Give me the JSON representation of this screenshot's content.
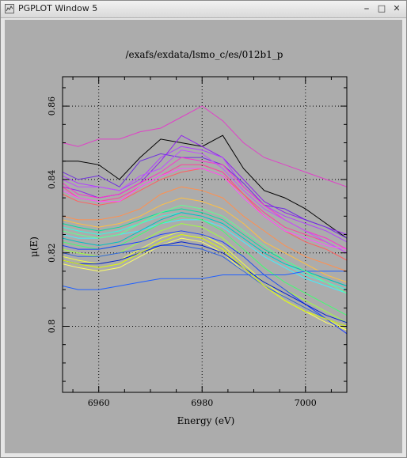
{
  "window": {
    "title": "PGPLOT Window 5",
    "controls": [
      "minimize-icon",
      "maximize-icon",
      "close-icon"
    ]
  },
  "chart_data": {
    "type": "line",
    "title": "/exafs/exdata/lsmo_c/es/012b1_p",
    "xlabel": "Energy (eV)",
    "ylabel": "μ(E)",
    "xlim": [
      6953,
      7008
    ],
    "ylim": [
      0.782,
      0.868
    ],
    "xticks": [
      6960,
      6980,
      7000
    ],
    "yticks": [
      0.8,
      0.82,
      0.84,
      0.86
    ],
    "xtick_labels": [
      "6960",
      "6980",
      "7000"
    ],
    "ytick_labels": [
      "0.8",
      "0.82",
      "0.84",
      "0.86"
    ],
    "grid": true,
    "legend": "none",
    "x": [
      6953,
      6956,
      6960,
      6964,
      6968,
      6972,
      6976,
      6980,
      6984,
      6988,
      6992,
      6996,
      7000,
      7004,
      7008
    ],
    "series": [
      {
        "color": "#e040c8",
        "values": [
          0.85,
          0.849,
          0.851,
          0.851,
          0.853,
          0.854,
          0.857,
          0.86,
          0.856,
          0.85,
          0.846,
          0.844,
          0.842,
          0.84,
          0.838
        ]
      },
      {
        "color": "#000000",
        "values": [
          0.845,
          0.845,
          0.844,
          0.84,
          0.846,
          0.851,
          0.85,
          0.849,
          0.852,
          0.843,
          0.837,
          0.835,
          0.832,
          0.828,
          0.824
        ]
      },
      {
        "color": "#9020f0",
        "values": [
          0.838,
          0.837,
          0.835,
          0.836,
          0.839,
          0.845,
          0.852,
          0.849,
          0.846,
          0.84,
          0.834,
          0.831,
          0.829,
          0.827,
          0.825
        ]
      },
      {
        "color": "#b040ff",
        "values": [
          0.841,
          0.839,
          0.838,
          0.837,
          0.84,
          0.846,
          0.849,
          0.848,
          0.846,
          0.838,
          0.833,
          0.83,
          0.828,
          0.826,
          0.823
        ]
      },
      {
        "color": "#7030e0",
        "values": [
          0.842,
          0.84,
          0.841,
          0.838,
          0.845,
          0.847,
          0.846,
          0.846,
          0.844,
          0.839,
          0.833,
          0.832,
          0.829,
          0.827,
          0.824
        ]
      },
      {
        "color": "#ff30d0",
        "values": [
          0.839,
          0.836,
          0.835,
          0.836,
          0.839,
          0.842,
          0.846,
          0.845,
          0.844,
          0.838,
          0.833,
          0.829,
          0.826,
          0.824,
          0.821
        ]
      },
      {
        "color": "#ff40a0",
        "values": [
          0.838,
          0.835,
          0.834,
          0.835,
          0.838,
          0.841,
          0.844,
          0.844,
          0.842,
          0.836,
          0.831,
          0.827,
          0.825,
          0.823,
          0.82
        ]
      },
      {
        "color": "#ff6060",
        "values": [
          0.836,
          0.834,
          0.833,
          0.834,
          0.837,
          0.84,
          0.842,
          0.843,
          0.841,
          0.836,
          0.83,
          0.826,
          0.823,
          0.821,
          0.818
        ]
      },
      {
        "color": "#c050ff",
        "values": [
          0.84,
          0.838,
          0.838,
          0.837,
          0.841,
          0.843,
          0.848,
          0.847,
          0.843,
          0.837,
          0.832,
          0.829,
          0.826,
          0.823,
          0.82
        ]
      },
      {
        "color": "#ff9050",
        "values": [
          0.83,
          0.829,
          0.829,
          0.83,
          0.832,
          0.836,
          0.838,
          0.837,
          0.835,
          0.83,
          0.826,
          0.822,
          0.819,
          0.817,
          0.815
        ]
      },
      {
        "color": "#ffc040",
        "values": [
          0.829,
          0.828,
          0.827,
          0.828,
          0.83,
          0.833,
          0.835,
          0.834,
          0.832,
          0.828,
          0.823,
          0.82,
          0.817,
          0.814,
          0.812
        ]
      },
      {
        "color": "#00e0a0",
        "values": [
          0.828,
          0.827,
          0.826,
          0.827,
          0.829,
          0.831,
          0.832,
          0.831,
          0.829,
          0.825,
          0.821,
          0.818,
          0.815,
          0.813,
          0.811
        ]
      },
      {
        "color": "#30ffe0",
        "values": [
          0.827,
          0.826,
          0.825,
          0.826,
          0.828,
          0.83,
          0.831,
          0.83,
          0.828,
          0.824,
          0.82,
          0.817,
          0.814,
          0.812,
          0.81
        ]
      },
      {
        "color": "#40f0ff",
        "values": [
          0.825,
          0.824,
          0.824,
          0.825,
          0.826,
          0.828,
          0.829,
          0.829,
          0.827,
          0.823,
          0.819,
          0.816,
          0.813,
          0.811,
          0.809
        ]
      },
      {
        "color": "#40ff70",
        "values": [
          0.823,
          0.822,
          0.821,
          0.822,
          0.825,
          0.828,
          0.83,
          0.829,
          0.826,
          0.821,
          0.816,
          0.812,
          0.809,
          0.806,
          0.803
        ]
      },
      {
        "color": "#a0ff40",
        "values": [
          0.821,
          0.82,
          0.819,
          0.82,
          0.823,
          0.826,
          0.828,
          0.827,
          0.824,
          0.819,
          0.814,
          0.81,
          0.807,
          0.804,
          0.801
        ]
      },
      {
        "color": "#f0ff40",
        "values": [
          0.819,
          0.818,
          0.817,
          0.818,
          0.821,
          0.824,
          0.826,
          0.825,
          0.822,
          0.817,
          0.812,
          0.808,
          0.805,
          0.802,
          0.799
        ]
      },
      {
        "color": "#ffff60",
        "values": [
          0.817,
          0.816,
          0.815,
          0.816,
          0.819,
          0.822,
          0.824,
          0.823,
          0.82,
          0.815,
          0.811,
          0.807,
          0.804,
          0.801,
          0.799
        ]
      },
      {
        "color": "#2040ff",
        "values": [
          0.822,
          0.821,
          0.821,
          0.822,
          0.823,
          0.825,
          0.826,
          0.825,
          0.823,
          0.819,
          0.814,
          0.81,
          0.806,
          0.802,
          0.798
        ]
      },
      {
        "color": "#3060e0",
        "values": [
          0.82,
          0.819,
          0.819,
          0.82,
          0.821,
          0.822,
          0.822,
          0.821,
          0.819,
          0.815,
          0.811,
          0.808,
          0.805,
          0.802,
          0.8
        ]
      },
      {
        "color": "#0020d0",
        "values": [
          0.818,
          0.817,
          0.817,
          0.818,
          0.82,
          0.822,
          0.823,
          0.822,
          0.82,
          0.816,
          0.812,
          0.809,
          0.806,
          0.803,
          0.801
        ]
      },
      {
        "color": "#2060ff",
        "values": [
          0.811,
          0.81,
          0.81,
          0.811,
          0.812,
          0.813,
          0.813,
          0.813,
          0.814,
          0.814,
          0.814,
          0.814,
          0.815,
          0.815,
          0.815
        ]
      },
      {
        "color": "#00c0c0",
        "values": [
          0.824,
          0.823,
          0.822,
          0.823,
          0.826,
          0.829,
          0.831,
          0.83,
          0.828,
          0.824,
          0.82,
          0.817,
          0.815,
          0.813,
          0.811
        ]
      },
      {
        "color": "#60ff90",
        "values": [
          0.826,
          0.825,
          0.824,
          0.825,
          0.828,
          0.831,
          0.833,
          0.832,
          0.83,
          0.826,
          0.822,
          0.818,
          0.815,
          0.812,
          0.809
        ]
      },
      {
        "color": "#ff50ff",
        "values": [
          0.837,
          0.835,
          0.834,
          0.834,
          0.838,
          0.841,
          0.843,
          0.843,
          0.841,
          0.835,
          0.83,
          0.826,
          0.824,
          0.822,
          0.821
        ]
      },
      {
        "color": "#e0ff00",
        "values": [
          0.818,
          0.817,
          0.816,
          0.817,
          0.82,
          0.823,
          0.825,
          0.824,
          0.821,
          0.816,
          0.811,
          0.807,
          0.804,
          0.802,
          0.8
        ]
      }
    ]
  }
}
